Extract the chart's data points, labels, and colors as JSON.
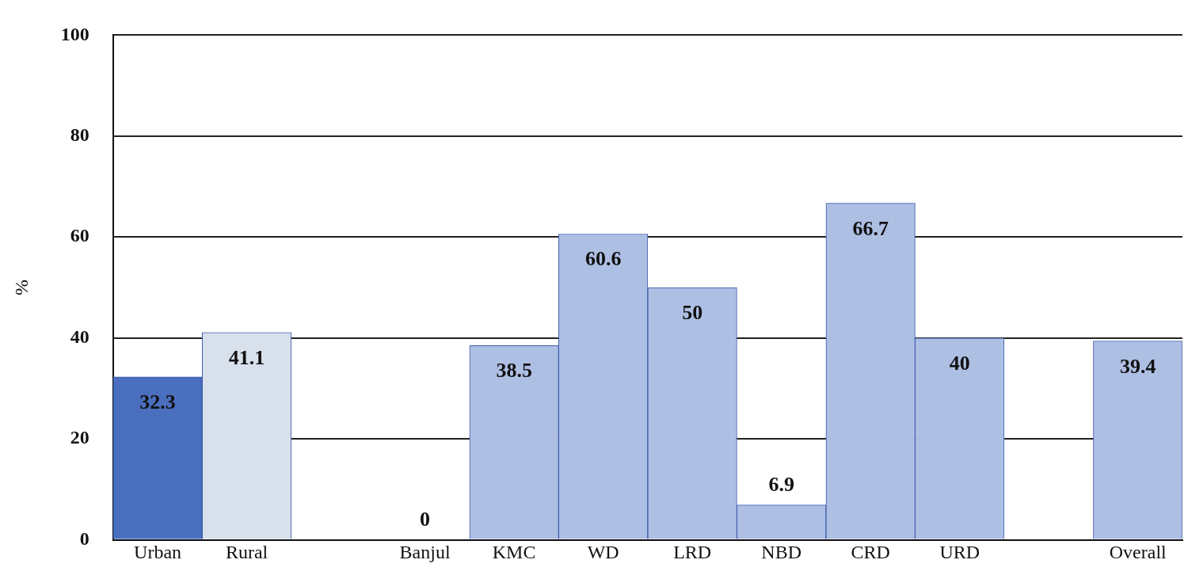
{
  "chart_data": {
    "type": "bar",
    "ylabel": "%",
    "categories": [
      "Urban",
      "Rural",
      null,
      "Banjul",
      "KMC",
      "WD",
      "LRD",
      "NBD",
      "CRD",
      "URD",
      null,
      "Overall"
    ],
    "values": [
      32.3,
      41.1,
      null,
      0,
      38.5,
      60.6,
      50,
      6.9,
      66.7,
      40,
      null,
      39.4
    ],
    "colors": [
      "#4a6fbf",
      "#d8e0ec",
      null,
      "#aebfe4",
      "#aebfe4",
      "#aebfe4",
      "#aebfe4",
      "#aebfe4",
      "#aebfe4",
      "#aebfe4",
      null,
      "#aebfe4"
    ],
    "ylim": [
      0,
      100
    ],
    "yticks": [
      0,
      20,
      40,
      60,
      80,
      100
    ],
    "grid": "y",
    "data_labels": true,
    "legend": false
  }
}
